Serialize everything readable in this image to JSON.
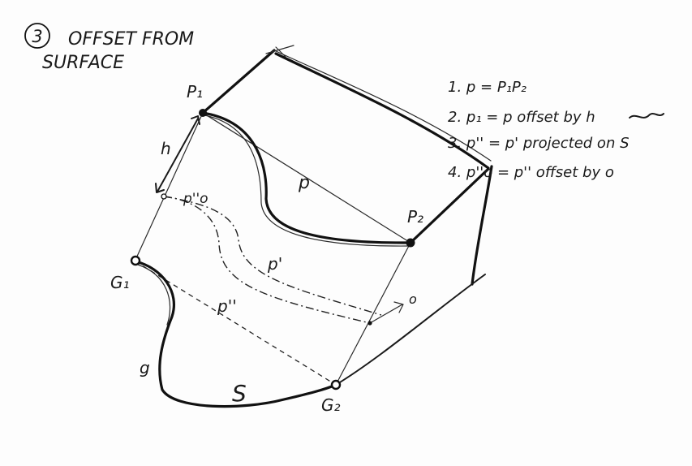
{
  "heading": {
    "number": "3",
    "line1": "OFFSET FROM",
    "line2": "SURFACE"
  },
  "points": {
    "p1": "P₁",
    "p2": "P₂",
    "g1": "G₁",
    "g2": "G₂"
  },
  "curve_labels": {
    "h": "h",
    "p": "p",
    "p_prime": "p'",
    "p_double_prime": "p''",
    "p_offset": "p''o",
    "o": "o",
    "g": "g",
    "surface": "S"
  },
  "steps": [
    "1. p = P₁P₂",
    "2. p₁ = p offset by h",
    "3. p'' = p' projected on S",
    "4. p''o = p'' offset by o"
  ]
}
